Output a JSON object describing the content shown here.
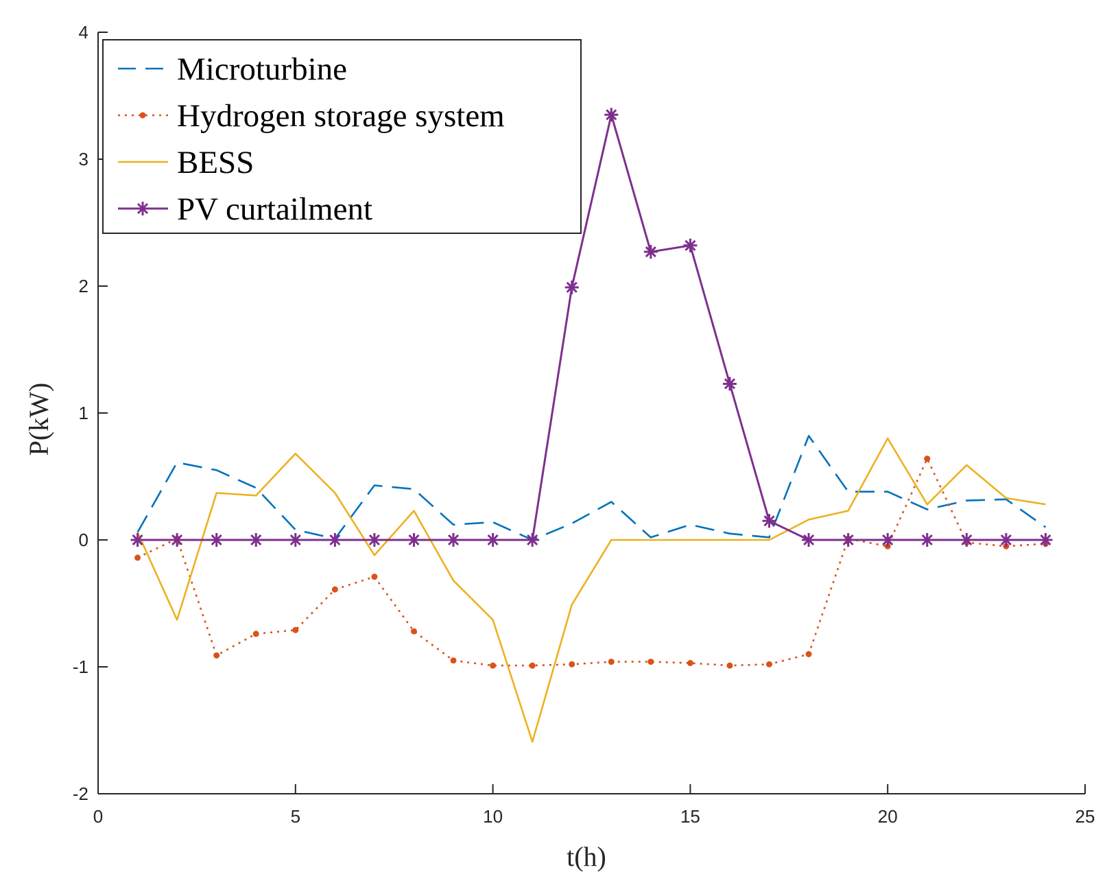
{
  "chart_data": {
    "type": "line",
    "xlabel": "t(h)",
    "ylabel": "P(kW)",
    "xlim": [
      0,
      25
    ],
    "ylim": [
      -2,
      4
    ],
    "xticks": [
      "0",
      "5",
      "10",
      "15",
      "20",
      "25"
    ],
    "yticks": [
      "-2",
      "-1",
      "0",
      "1",
      "2",
      "3",
      "4"
    ],
    "grid": false,
    "legend_position": "top-left",
    "x": [
      1,
      2,
      3,
      4,
      5,
      6,
      7,
      8,
      9,
      10,
      11,
      12,
      13,
      14,
      15,
      16,
      17,
      18,
      19,
      20,
      21,
      22,
      23,
      24
    ],
    "series": [
      {
        "name": "Microturbine",
        "color": "#0072BD",
        "style": "dashed",
        "marker": "none",
        "values": [
          0.06,
          0.61,
          0.55,
          0.41,
          0.08,
          0.01,
          0.43,
          0.4,
          0.12,
          0.14,
          0.0,
          0.13,
          0.3,
          0.02,
          0.12,
          0.05,
          0.02,
          0.82,
          0.38,
          0.38,
          0.24,
          0.31,
          0.32,
          0.1
        ]
      },
      {
        "name": "Hydrogen storage system",
        "color": "#D95319",
        "style": "dotted",
        "marker": "dot",
        "values": [
          -0.14,
          0.01,
          -0.91,
          -0.74,
          -0.71,
          -0.39,
          -0.29,
          -0.72,
          -0.95,
          -0.99,
          -0.99,
          -0.98,
          -0.96,
          -0.96,
          -0.97,
          -0.99,
          -0.98,
          -0.9,
          0.01,
          -0.05,
          0.64,
          -0.02,
          -0.05,
          -0.03
        ]
      },
      {
        "name": "BESS",
        "color": "#EDB120",
        "style": "solid",
        "marker": "none",
        "values": [
          0.06,
          -0.63,
          0.37,
          0.35,
          0.68,
          0.37,
          -0.12,
          0.23,
          -0.32,
          -0.63,
          -1.59,
          -0.51,
          0.0,
          0.0,
          0.0,
          0.0,
          0.0,
          0.16,
          0.23,
          0.8,
          0.28,
          0.59,
          0.33,
          0.28
        ]
      },
      {
        "name": "PV curtailment",
        "color": "#7E2F8E",
        "style": "solid",
        "marker": "asterisk",
        "values": [
          0,
          0,
          0,
          0,
          0,
          0,
          0,
          0,
          0,
          0,
          0,
          1.99,
          3.35,
          2.27,
          2.32,
          1.23,
          0.15,
          0,
          0,
          0,
          0,
          0,
          0,
          0
        ]
      }
    ]
  }
}
